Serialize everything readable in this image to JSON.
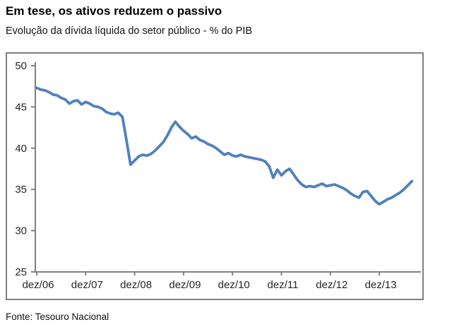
{
  "header": {
    "title": "Em tese, os ativos reduzem o passivo",
    "subtitle": "Evolução da dívida líquida do setor público - % do PIB"
  },
  "footer": {
    "source": "Fonte: Tesouro Nacional"
  },
  "chart_data": {
    "type": "line",
    "title": "Evolução da dívida líquida do setor público - % do PIB",
    "xlabel": "",
    "ylabel": "% do PIB",
    "ylim": [
      25,
      50
    ],
    "y_ticks": [
      25,
      30,
      35,
      40,
      45,
      50
    ],
    "x_tick_labels": [
      "dez/06",
      "dez/07",
      "dez/08",
      "dez/09",
      "dez/10",
      "dez/11",
      "dez/12",
      "dez/13"
    ],
    "x_frequency": "monthly",
    "grid": "off",
    "legend": "none",
    "axis_color": "#808080",
    "label_color": "#262626",
    "x": [
      "dez/06",
      "jan/07",
      "fev/07",
      "mar/07",
      "abr/07",
      "mai/07",
      "jun/07",
      "jul/07",
      "ago/07",
      "set/07",
      "out/07",
      "nov/07",
      "dez/07",
      "jan/08",
      "fev/08",
      "mar/08",
      "abr/08",
      "mai/08",
      "jun/08",
      "jul/08",
      "ago/08",
      "set/08",
      "out/08",
      "nov/08",
      "dez/08",
      "jan/09",
      "fev/09",
      "mar/09",
      "abr/09",
      "mai/09",
      "jun/09",
      "jul/09",
      "ago/09",
      "set/09",
      "out/09",
      "nov/09",
      "dez/09",
      "jan/10",
      "fev/10",
      "mar/10",
      "abr/10",
      "mai/10",
      "jun/10",
      "jul/10",
      "ago/10",
      "set/10",
      "out/10",
      "nov/10",
      "dez/10",
      "jan/11",
      "fev/11",
      "mar/11",
      "abr/11",
      "mai/11",
      "jun/11",
      "jul/11",
      "ago/11",
      "set/11",
      "out/11",
      "nov/11",
      "dez/11",
      "jan/12",
      "fev/12",
      "mar/12",
      "abr/12",
      "mai/12",
      "jun/12",
      "jul/12",
      "ago/12",
      "set/12",
      "out/12",
      "nov/12",
      "dez/12",
      "jan/13",
      "fev/13",
      "mar/13",
      "abr/13",
      "mai/13",
      "jun/13",
      "jul/13",
      "ago/13",
      "set/13",
      "out/13",
      "nov/13",
      "dez/13",
      "jan/14",
      "fev/14",
      "mar/14",
      "abr/14",
      "mai/14",
      "jun/14",
      "jul/14",
      "ago/14"
    ],
    "series": [
      {
        "name": "Dívida líquida do setor público (% do PIB)",
        "color": "#4F81BD",
        "values": [
          47.3,
          47.1,
          47.0,
          46.8,
          46.5,
          46.4,
          46.1,
          45.9,
          45.4,
          45.7,
          45.8,
          45.3,
          45.6,
          45.4,
          45.1,
          45.0,
          44.8,
          44.4,
          44.2,
          44.1,
          44.3,
          43.8,
          41.0,
          38.0,
          38.5,
          39.0,
          39.2,
          39.1,
          39.3,
          39.7,
          40.2,
          40.7,
          41.5,
          42.5,
          43.2,
          42.6,
          42.1,
          41.7,
          41.2,
          41.4,
          41.0,
          40.8,
          40.5,
          40.3,
          40.0,
          39.6,
          39.2,
          39.4,
          39.1,
          39.0,
          39.2,
          39.0,
          38.9,
          38.8,
          38.7,
          38.6,
          38.4,
          37.8,
          36.4,
          37.4,
          36.7,
          37.2,
          37.5,
          36.8,
          36.1,
          35.6,
          35.3,
          35.4,
          35.3,
          35.5,
          35.7,
          35.4,
          35.5,
          35.6,
          35.4,
          35.2,
          34.9,
          34.5,
          34.2,
          34.0,
          34.7,
          34.8,
          34.2,
          33.6,
          33.2,
          33.5,
          33.8,
          34.0,
          34.3,
          34.6,
          35.0,
          35.5,
          36.0
        ]
      }
    ]
  }
}
